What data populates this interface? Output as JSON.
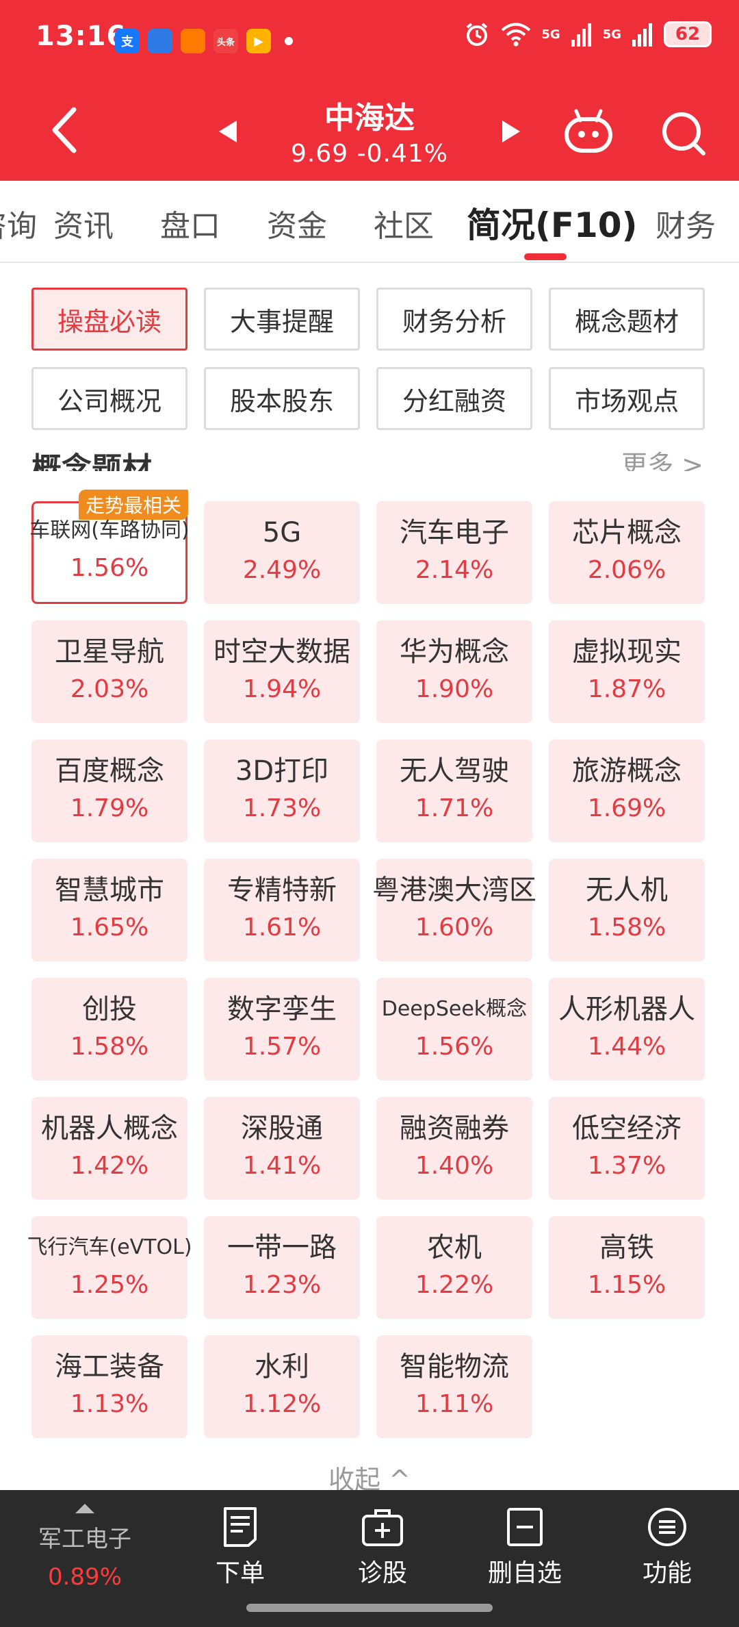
{
  "status": {
    "time": "13:16",
    "battery": "62",
    "signal1": "5G",
    "signal2": "5G",
    "app_icons": [
      {
        "name": "alipay-icon",
        "label": "支",
        "color": "#1677ff"
      },
      {
        "name": "bank-app-icon",
        "label": "",
        "color": "#2f7be6"
      },
      {
        "name": "app-orange-icon",
        "label": "",
        "color": "#ff7a00"
      },
      {
        "name": "toutiao-icon",
        "label": "头条",
        "color": "#f04142"
      },
      {
        "name": "video-app-icon",
        "label": "▶",
        "color": "#ffb300"
      }
    ]
  },
  "header": {
    "stock_name": "中海达",
    "quote": "9.69  -0.41%"
  },
  "tabs": [
    {
      "label": "咨询",
      "partial": true
    },
    {
      "label": "资讯"
    },
    {
      "label": "盘口"
    },
    {
      "label": "资金"
    },
    {
      "label": "社区"
    },
    {
      "label": "简况(F10)",
      "active": true
    },
    {
      "label": "财务"
    }
  ],
  "subnav": [
    {
      "label": "操盘必读",
      "active": true
    },
    {
      "label": "大事提醒"
    },
    {
      "label": "财务分析"
    },
    {
      "label": "概念题材"
    },
    {
      "label": "公司概况"
    },
    {
      "label": "股本股东"
    },
    {
      "label": "分红融资"
    },
    {
      "label": "市场观点"
    }
  ],
  "section": {
    "title": "概念题材",
    "more": "更多 >"
  },
  "concepts": [
    {
      "name": "车联网(车路协同)",
      "pct": "1.56%",
      "highlight": true,
      "badge": "走势最相关"
    },
    {
      "name": "5G",
      "pct": "2.49%"
    },
    {
      "name": "汽车电子",
      "pct": "2.14%"
    },
    {
      "name": "芯片概念",
      "pct": "2.06%"
    },
    {
      "name": "卫星导航",
      "pct": "2.03%"
    },
    {
      "name": "时空大数据",
      "pct": "1.94%"
    },
    {
      "name": "华为概念",
      "pct": "1.90%"
    },
    {
      "name": "虚拟现实",
      "pct": "1.87%"
    },
    {
      "name": "百度概念",
      "pct": "1.79%"
    },
    {
      "name": "3D打印",
      "pct": "1.73%"
    },
    {
      "name": "无人驾驶",
      "pct": "1.71%"
    },
    {
      "name": "旅游概念",
      "pct": "1.69%"
    },
    {
      "name": "智慧城市",
      "pct": "1.65%"
    },
    {
      "name": "专精特新",
      "pct": "1.61%"
    },
    {
      "name": "粤港澳大湾区",
      "pct": "1.60%"
    },
    {
      "name": "无人机",
      "pct": "1.58%"
    },
    {
      "name": "创投",
      "pct": "1.58%"
    },
    {
      "name": "数字孪生",
      "pct": "1.57%"
    },
    {
      "name": "DeepSeek概念",
      "pct": "1.56%"
    },
    {
      "name": "人形机器人",
      "pct": "1.44%"
    },
    {
      "name": "机器人概念",
      "pct": "1.42%"
    },
    {
      "name": "深股通",
      "pct": "1.41%"
    },
    {
      "name": "融资融券",
      "pct": "1.40%"
    },
    {
      "name": "低空经济",
      "pct": "1.37%"
    },
    {
      "name": "飞行汽车(eVTOL)",
      "pct": "1.25%"
    },
    {
      "name": "一带一路",
      "pct": "1.23%"
    },
    {
      "name": "农机",
      "pct": "1.22%"
    },
    {
      "name": "高铁",
      "pct": "1.15%"
    },
    {
      "name": "海工装备",
      "pct": "1.13%"
    },
    {
      "name": "水利",
      "pct": "1.12%"
    },
    {
      "name": "智能物流",
      "pct": "1.11%"
    }
  ],
  "collapse_label": "收起 ^",
  "bottom": {
    "related_name": "军工电子",
    "related_pct": "0.89%",
    "actions": [
      {
        "label": "下单",
        "icon": "order-icon"
      },
      {
        "label": "诊股",
        "icon": "diagnose-icon"
      },
      {
        "label": "删自选",
        "icon": "remove-watchlist-icon"
      },
      {
        "label": "功能",
        "icon": "menu-icon"
      }
    ]
  },
  "colors": {
    "brand_red": "#ee2f3a",
    "up_red": "#e23b41",
    "card_bg": "#fde8ea",
    "badge_orange": "#f08c1e"
  }
}
